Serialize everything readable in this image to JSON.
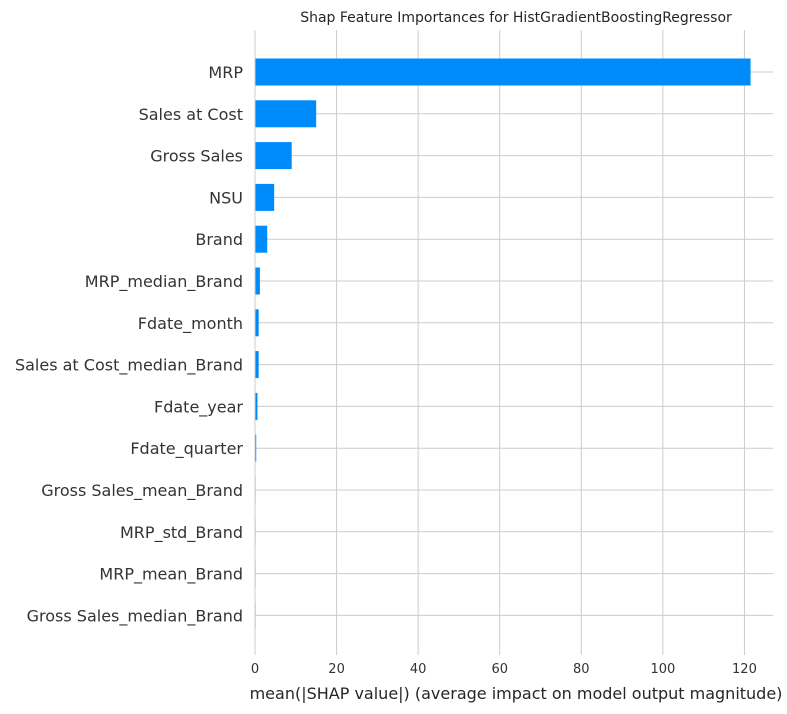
{
  "chart_data": {
    "type": "bar",
    "orientation": "horizontal",
    "title": "Shap Feature Importances for HistGradientBoostingRegressor",
    "xlabel": "mean(|SHAP value|) (average impact on model output magnitude)",
    "ylabel": "",
    "xlim": [
      0,
      127
    ],
    "xticks": [
      0,
      20,
      40,
      60,
      80,
      100,
      120
    ],
    "grid": true,
    "bar_color": "#008BFB",
    "categories": [
      "MRP",
      "Sales at Cost",
      "Gross Sales",
      "NSU",
      "Brand",
      "MRP_median_Brand",
      "Fdate_month",
      "Sales at Cost_median_Brand",
      "Fdate_year",
      "Fdate_quarter",
      "Gross Sales_mean_Brand",
      "MRP_std_Brand",
      "MRP_mean_Brand",
      "Gross Sales_median_Brand"
    ],
    "values": [
      121.5,
      15,
      9,
      4.7,
      3,
      1.2,
      0.9,
      0.9,
      0.6,
      0.3,
      0.05,
      0.04,
      0.03,
      0.02
    ]
  }
}
